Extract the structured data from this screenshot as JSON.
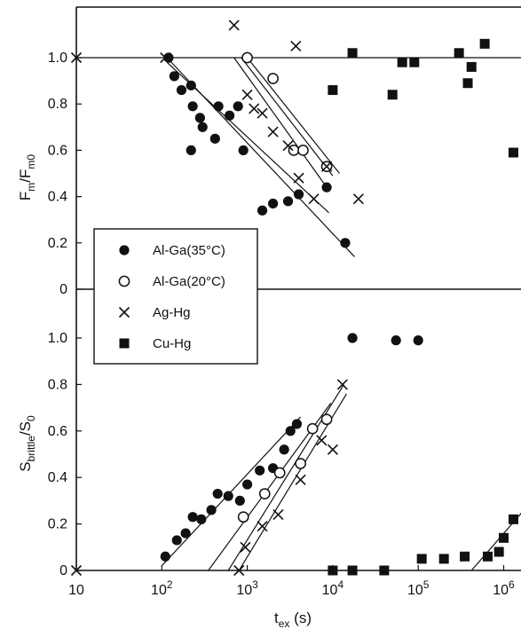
{
  "chart_data": [
    {
      "type": "scatter",
      "panel": "top",
      "ylabel": "F_m/F_m0",
      "yticks": [
        "1.0",
        "0.8",
        "0.6",
        "0.4",
        "0.2",
        "0"
      ],
      "ylim": [
        0,
        1.2
      ],
      "xscale": "log",
      "xlim": [
        10,
        3000000
      ],
      "series": [
        {
          "name": "Al-Ga(35°C)",
          "marker": "filled-circle",
          "points": [
            [
              120,
              1.0
            ],
            [
              140,
              0.92
            ],
            [
              170,
              0.86
            ],
            [
              220,
              0.88
            ],
            [
              230,
              0.79
            ],
            [
              280,
              0.74
            ],
            [
              220,
              0.6
            ],
            [
              300,
              0.7
            ],
            [
              420,
              0.65
            ],
            [
              460,
              0.79
            ],
            [
              620,
              0.75
            ],
            [
              780,
              0.79
            ],
            [
              900,
              0.6
            ],
            [
              1500,
              0.34
            ],
            [
              2000,
              0.37
            ],
            [
              3000,
              0.38
            ],
            [
              4000,
              0.41
            ],
            [
              8500,
              0.44
            ],
            [
              14000,
              0.2
            ]
          ]
        },
        {
          "name": "Al-Ga(20°C)",
          "marker": "open-circle",
          "points": [
            [
              1000,
              1.0
            ],
            [
              2000,
              0.91
            ],
            [
              3500,
              0.6
            ],
            [
              4500,
              0.6
            ],
            [
              8500,
              0.53
            ]
          ]
        },
        {
          "name": "Ag-Hg",
          "marker": "cross",
          "points": [
            [
              10,
              1.0
            ],
            [
              110,
              1.0
            ],
            [
              700,
              1.14
            ],
            [
              1000,
              0.84
            ],
            [
              1200,
              0.78
            ],
            [
              1500,
              0.76
            ],
            [
              2000,
              0.68
            ],
            [
              3000,
              0.62
            ],
            [
              3700,
              1.05
            ],
            [
              4000,
              0.48
            ],
            [
              6000,
              0.39
            ],
            [
              8500,
              0.53
            ],
            [
              20000,
              0.39
            ]
          ]
        },
        {
          "name": "Cu-Hg",
          "marker": "filled-square",
          "points": [
            [
              17000,
              1.02
            ],
            [
              10000,
              0.86
            ],
            [
              50000,
              0.84
            ],
            [
              65000,
              0.98
            ],
            [
              90000,
              0.98
            ],
            [
              300000,
              1.02
            ],
            [
              380000,
              0.89
            ],
            [
              420000,
              0.96
            ],
            [
              600000,
              1.06
            ],
            [
              1300000,
              0.59
            ]
          ]
        }
      ]
    },
    {
      "type": "scatter",
      "panel": "bottom",
      "ylabel": "S_brittle/S_0",
      "xlabel": "t_ex (s)",
      "yticks": [
        "1.0",
        "0.8",
        "0.6",
        "0.4",
        "0.2",
        "0"
      ],
      "xticks": [
        "10",
        "10^2",
        "10^3",
        "10^4",
        "10^5",
        "10^6"
      ],
      "ylim": [
        0,
        1.2
      ],
      "xscale": "log",
      "xlim": [
        10,
        3000000
      ],
      "series": [
        {
          "name": "Al-Ga(35°C)",
          "marker": "filled-circle",
          "points": [
            [
              110,
              0.06
            ],
            [
              150,
              0.13
            ],
            [
              190,
              0.16
            ],
            [
              230,
              0.23
            ],
            [
              290,
              0.22
            ],
            [
              380,
              0.26
            ],
            [
              450,
              0.33
            ],
            [
              600,
              0.32
            ],
            [
              820,
              0.3
            ],
            [
              1000,
              0.37
            ],
            [
              1400,
              0.43
            ],
            [
              2000,
              0.44
            ],
            [
              2700,
              0.52
            ],
            [
              3200,
              0.6
            ],
            [
              3800,
              0.63
            ],
            [
              17000,
              1.0
            ],
            [
              55000,
              0.99
            ],
            [
              100000,
              0.99
            ]
          ]
        },
        {
          "name": "Al-Ga(20°C)",
          "marker": "open-circle",
          "points": [
            [
              900,
              0.23
            ],
            [
              1600,
              0.33
            ],
            [
              2400,
              0.42
            ],
            [
              4200,
              0.46
            ],
            [
              5800,
              0.61
            ],
            [
              8500,
              0.65
            ]
          ]
        },
        {
          "name": "Ag-Hg",
          "marker": "cross",
          "points": [
            [
              10,
              0.0
            ],
            [
              800,
              0.0
            ],
            [
              950,
              0.1
            ],
            [
              1500,
              0.19
            ],
            [
              2300,
              0.24
            ],
            [
              4200,
              0.39
            ],
            [
              7400,
              0.56
            ],
            [
              10000,
              0.52
            ],
            [
              13000,
              0.8
            ]
          ]
        },
        {
          "name": "Cu-Hg",
          "marker": "filled-square",
          "points": [
            [
              10000,
              0.0
            ],
            [
              17000,
              0.0
            ],
            [
              40000,
              0.0
            ],
            [
              110000,
              0.05
            ],
            [
              200000,
              0.05
            ],
            [
              350000,
              0.06
            ],
            [
              650000,
              0.06
            ],
            [
              880000,
              0.08
            ],
            [
              1000000,
              0.14
            ],
            [
              1300000,
              0.22
            ]
          ]
        }
      ]
    }
  ],
  "legend": {
    "items": [
      {
        "label": "Al-Ga(35°C)",
        "marker": "filled-circle"
      },
      {
        "label": "Al-Ga(20°C)",
        "marker": "open-circle"
      },
      {
        "label": "Ag-Hg",
        "marker": "cross"
      },
      {
        "label": "Cu-Hg",
        "marker": "filled-square"
      }
    ]
  },
  "colors": {
    "ink": "#111111",
    "background": "#ffffff"
  }
}
